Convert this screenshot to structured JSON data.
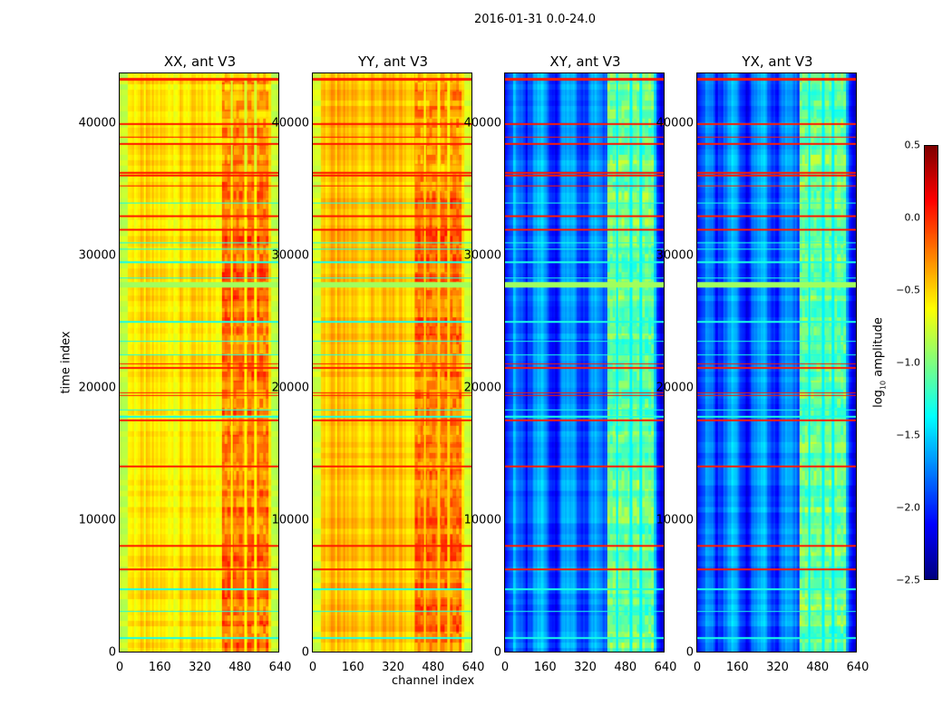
{
  "chart_data": {
    "type": "heatmap",
    "title": "2016-01-31 0.0-24.0",
    "xlabel": "channel index",
    "ylabel": "time index",
    "xlim": [
      0,
      640
    ],
    "ylim": [
      0,
      43800
    ],
    "xticks": [
      "0",
      "160",
      "320",
      "480",
      "640"
    ],
    "yticks": [
      "0",
      "10000",
      "20000",
      "30000",
      "40000"
    ],
    "colormap": "jet",
    "colorbar": {
      "label": "log10 amplitude",
      "label_base": "log",
      "label_sub": "10",
      "label_rest": " amplitude",
      "vmin": -2.5,
      "vmax": 0.5,
      "ticks": [
        "0.5",
        "0.0",
        "−0.5",
        "−1.0",
        "−1.5",
        "−2.0",
        "−2.5"
      ]
    },
    "rfi_band_channels": [
      410,
      600
    ],
    "flag_rows_red": [
      43400,
      40000,
      39000,
      38500,
      36300,
      36100,
      35300,
      33000,
      32000,
      21800,
      21500,
      19600,
      19400,
      17500,
      14000,
      8000,
      6200
    ],
    "flag_rows_cyan": [
      34000,
      31000,
      30500,
      29500,
      28300,
      25000,
      23500,
      22500,
      18300,
      17800,
      4700,
      3000,
      1000
    ],
    "panels": [
      {
        "title": "XX, ant V3",
        "base": -0.55,
        "edge": -0.8,
        "band": -0.2
      },
      {
        "title": "YY, ant V3",
        "base": -0.45,
        "edge": -0.75,
        "band": -0.2
      },
      {
        "title": "XY, ant V3",
        "base": -1.8,
        "edge": -2.1,
        "band": -1.05
      },
      {
        "title": "YX, ant V3",
        "base": -1.8,
        "edge": -2.1,
        "band": -1.05
      }
    ]
  }
}
